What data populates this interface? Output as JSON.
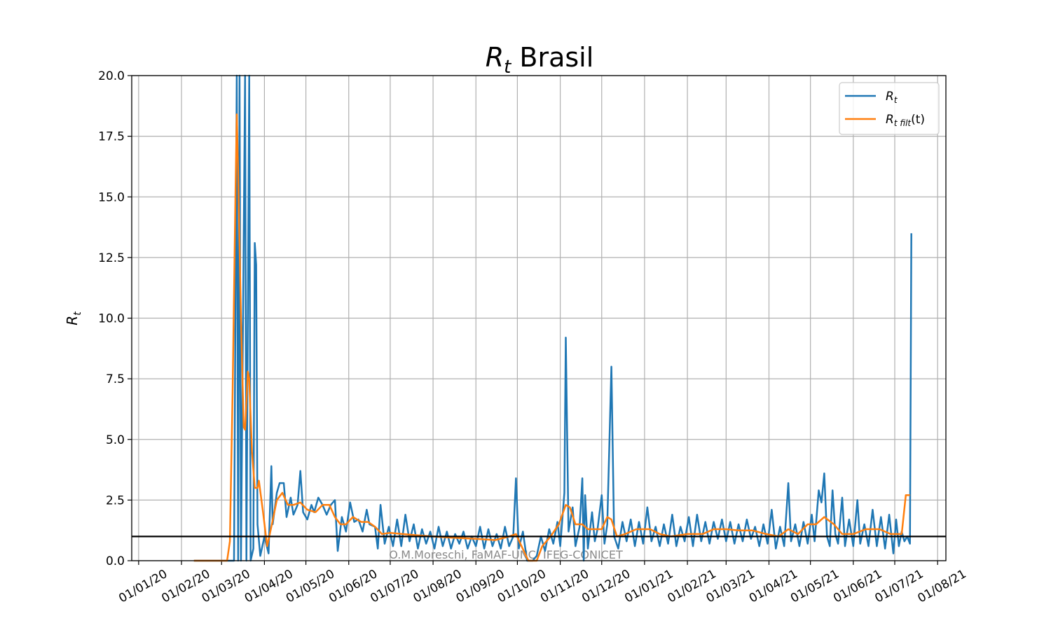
{
  "chart_data": {
    "type": "line",
    "title_main": "R",
    "title_sub": "t",
    "title_rest": " Brasil",
    "ylabel_main": "R",
    "ylabel_sub": "t",
    "ylim": [
      0,
      20
    ],
    "yticks": [
      "0.0",
      "2.5",
      "5.0",
      "7.5",
      "10.0",
      "12.5",
      "15.0",
      "17.5",
      "20.0"
    ],
    "xticks": [
      "01/01/20",
      "01/02/20",
      "01/03/20",
      "01/04/20",
      "01/05/20",
      "01/06/20",
      "01/07/20",
      "01/08/20",
      "01/09/20",
      "01/10/20",
      "01/11/20",
      "01/12/20",
      "01/01/21",
      "01/02/21",
      "01/03/21",
      "01/04/21",
      "01/05/21",
      "01/06/21",
      "01/07/21",
      "01/08/21"
    ],
    "grid": true,
    "legend_position": "top-right",
    "reference_line": 1.0,
    "watermark": "O.M.Moreschi, FaMAF-UNC, IFEG-CONICET",
    "colors": {
      "rt": "#1f77b4",
      "rt_filt": "#ff7f0e",
      "reference": "#000000"
    },
    "series": [
      {
        "name": "R_t",
        "legend_main": "R",
        "legend_sub": "t",
        "legend_rest": "",
        "points": [
          [
            "2020-02-10",
            0
          ],
          [
            "2020-03-01",
            0
          ],
          [
            "2020-03-05",
            0
          ],
          [
            "2020-03-10",
            0
          ],
          [
            "2020-03-12",
            20
          ],
          [
            "2020-03-13",
            0
          ],
          [
            "2020-03-14",
            20
          ],
          [
            "2020-03-15",
            0
          ],
          [
            "2020-03-18",
            20
          ],
          [
            "2020-03-19",
            0
          ],
          [
            "2020-03-21",
            20
          ],
          [
            "2020-03-22",
            0
          ],
          [
            "2020-03-24",
            0.5
          ],
          [
            "2020-03-25",
            13.1
          ],
          [
            "2020-03-26",
            12.2
          ],
          [
            "2020-03-27",
            1.5
          ],
          [
            "2020-03-29",
            0.2
          ],
          [
            "2020-04-01",
            1.0
          ],
          [
            "2020-04-04",
            0.3
          ],
          [
            "2020-04-06",
            3.9
          ],
          [
            "2020-04-07",
            1.5
          ],
          [
            "2020-04-10",
            2.8
          ],
          [
            "2020-04-12",
            3.2
          ],
          [
            "2020-04-15",
            3.2
          ],
          [
            "2020-04-17",
            1.8
          ],
          [
            "2020-04-20",
            2.6
          ],
          [
            "2020-04-22",
            1.9
          ],
          [
            "2020-04-25",
            2.3
          ],
          [
            "2020-04-27",
            3.7
          ],
          [
            "2020-04-29",
            2.0
          ],
          [
            "2020-05-02",
            1.7
          ],
          [
            "2020-05-05",
            2.3
          ],
          [
            "2020-05-07",
            2.0
          ],
          [
            "2020-05-10",
            2.6
          ],
          [
            "2020-05-13",
            2.3
          ],
          [
            "2020-05-16",
            1.9
          ],
          [
            "2020-05-19",
            2.3
          ],
          [
            "2020-05-22",
            2.5
          ],
          [
            "2020-05-24",
            0.4
          ],
          [
            "2020-05-27",
            1.8
          ],
          [
            "2020-05-30",
            1.2
          ],
          [
            "2020-06-02",
            2.4
          ],
          [
            "2020-06-05",
            1.6
          ],
          [
            "2020-06-08",
            1.7
          ],
          [
            "2020-06-11",
            1.2
          ],
          [
            "2020-06-14",
            2.1
          ],
          [
            "2020-06-16",
            1.5
          ],
          [
            "2020-06-20",
            1.4
          ],
          [
            "2020-06-22",
            0.5
          ],
          [
            "2020-06-24",
            2.3
          ],
          [
            "2020-06-27",
            0.7
          ],
          [
            "2020-06-30",
            1.4
          ],
          [
            "2020-07-03",
            0.6
          ],
          [
            "2020-07-06",
            1.7
          ],
          [
            "2020-07-09",
            0.6
          ],
          [
            "2020-07-12",
            1.9
          ],
          [
            "2020-07-15",
            0.8
          ],
          [
            "2020-07-18",
            1.5
          ],
          [
            "2020-07-21",
            0.5
          ],
          [
            "2020-07-24",
            1.3
          ],
          [
            "2020-07-27",
            0.7
          ],
          [
            "2020-07-30",
            1.2
          ],
          [
            "2020-08-02",
            0.5
          ],
          [
            "2020-08-05",
            1.4
          ],
          [
            "2020-08-08",
            0.6
          ],
          [
            "2020-08-11",
            1.2
          ],
          [
            "2020-08-14",
            0.5
          ],
          [
            "2020-08-17",
            1.1
          ],
          [
            "2020-08-20",
            0.7
          ],
          [
            "2020-08-23",
            1.2
          ],
          [
            "2020-08-26",
            0.5
          ],
          [
            "2020-08-29",
            1.0
          ],
          [
            "2020-09-01",
            0.6
          ],
          [
            "2020-09-04",
            1.4
          ],
          [
            "2020-09-07",
            0.5
          ],
          [
            "2020-09-10",
            1.3
          ],
          [
            "2020-09-13",
            0.6
          ],
          [
            "2020-09-16",
            1.1
          ],
          [
            "2020-09-19",
            0.5
          ],
          [
            "2020-09-22",
            1.4
          ],
          [
            "2020-09-25",
            0.6
          ],
          [
            "2020-09-28",
            1.0
          ],
          [
            "2020-09-30",
            3.4
          ],
          [
            "2020-10-02",
            0.5
          ],
          [
            "2020-10-05",
            1.2
          ],
          [
            "2020-10-08",
            0
          ],
          [
            "2020-10-12",
            0
          ],
          [
            "2020-10-15",
            0.2
          ],
          [
            "2020-10-18",
            1.0
          ],
          [
            "2020-10-21",
            0.4
          ],
          [
            "2020-10-24",
            1.3
          ],
          [
            "2020-10-27",
            0.7
          ],
          [
            "2020-10-30",
            1.6
          ],
          [
            "2020-11-01",
            0.6
          ],
          [
            "2020-11-04",
            2.8
          ],
          [
            "2020-11-05",
            9.2
          ],
          [
            "2020-11-07",
            1.2
          ],
          [
            "2020-11-10",
            2.2
          ],
          [
            "2020-11-12",
            0.6
          ],
          [
            "2020-11-15",
            1.4
          ],
          [
            "2020-11-17",
            3.4
          ],
          [
            "2020-11-18",
            0
          ],
          [
            "2020-11-19",
            2.7
          ],
          [
            "2020-11-21",
            0.5
          ],
          [
            "2020-11-24",
            2.0
          ],
          [
            "2020-11-26",
            0.8
          ],
          [
            "2020-11-28",
            1.3
          ],
          [
            "2020-12-01",
            2.7
          ],
          [
            "2020-12-03",
            0.7
          ],
          [
            "2020-12-05",
            1.5
          ],
          [
            "2020-12-08",
            8.0
          ],
          [
            "2020-12-10",
            1.0
          ],
          [
            "2020-12-13",
            0.5
          ],
          [
            "2020-12-16",
            1.6
          ],
          [
            "2020-12-19",
            0.8
          ],
          [
            "2020-12-22",
            1.7
          ],
          [
            "2020-12-25",
            0.6
          ],
          [
            "2020-12-28",
            1.6
          ],
          [
            "2020-12-31",
            0.7
          ],
          [
            "2021-01-03",
            2.2
          ],
          [
            "2021-01-06",
            0.8
          ],
          [
            "2021-01-09",
            1.4
          ],
          [
            "2021-01-12",
            0.6
          ],
          [
            "2021-01-15",
            1.5
          ],
          [
            "2021-01-18",
            0.7
          ],
          [
            "2021-01-21",
            1.9
          ],
          [
            "2021-01-24",
            0.6
          ],
          [
            "2021-01-27",
            1.4
          ],
          [
            "2021-01-30",
            0.8
          ],
          [
            "2021-02-02",
            1.8
          ],
          [
            "2021-02-05",
            0.6
          ],
          [
            "2021-02-08",
            1.9
          ],
          [
            "2021-02-11",
            0.8
          ],
          [
            "2021-02-14",
            1.6
          ],
          [
            "2021-02-17",
            0.7
          ],
          [
            "2021-02-20",
            1.6
          ],
          [
            "2021-02-23",
            0.9
          ],
          [
            "2021-02-26",
            1.7
          ],
          [
            "2021-03-01",
            0.8
          ],
          [
            "2021-03-04",
            1.6
          ],
          [
            "2021-03-07",
            0.7
          ],
          [
            "2021-03-10",
            1.5
          ],
          [
            "2021-03-13",
            0.8
          ],
          [
            "2021-03-16",
            1.7
          ],
          [
            "2021-03-19",
            0.9
          ],
          [
            "2021-03-22",
            1.4
          ],
          [
            "2021-03-25",
            0.6
          ],
          [
            "2021-03-28",
            1.5
          ],
          [
            "2021-03-31",
            0.7
          ],
          [
            "2021-04-03",
            2.1
          ],
          [
            "2021-04-06",
            0.5
          ],
          [
            "2021-04-09",
            1.4
          ],
          [
            "2021-04-12",
            0.6
          ],
          [
            "2021-04-15",
            3.2
          ],
          [
            "2021-04-17",
            0.8
          ],
          [
            "2021-04-20",
            1.5
          ],
          [
            "2021-04-23",
            0.6
          ],
          [
            "2021-04-26",
            1.6
          ],
          [
            "2021-04-29",
            0.7
          ],
          [
            "2021-05-02",
            1.9
          ],
          [
            "2021-05-04",
            0.8
          ],
          [
            "2021-05-07",
            2.9
          ],
          [
            "2021-05-09",
            2.4
          ],
          [
            "2021-05-11",
            3.6
          ],
          [
            "2021-05-13",
            1.0
          ],
          [
            "2021-05-15",
            0.6
          ],
          [
            "2021-05-17",
            2.9
          ],
          [
            "2021-05-19",
            1.1
          ],
          [
            "2021-05-21",
            0.7
          ],
          [
            "2021-05-24",
            2.6
          ],
          [
            "2021-05-26",
            0.6
          ],
          [
            "2021-05-29",
            1.7
          ],
          [
            "2021-06-01",
            0.6
          ],
          [
            "2021-06-04",
            2.5
          ],
          [
            "2021-06-06",
            0.7
          ],
          [
            "2021-06-09",
            1.5
          ],
          [
            "2021-06-12",
            0.6
          ],
          [
            "2021-06-15",
            2.1
          ],
          [
            "2021-06-18",
            0.6
          ],
          [
            "2021-06-21",
            1.8
          ],
          [
            "2021-06-24",
            0.5
          ],
          [
            "2021-06-27",
            1.9
          ],
          [
            "2021-06-30",
            0.3
          ],
          [
            "2021-07-02",
            1.7
          ],
          [
            "2021-07-04",
            0.6
          ],
          [
            "2021-07-06",
            1.2
          ],
          [
            "2021-07-08",
            0.8
          ],
          [
            "2021-07-10",
            1.0
          ],
          [
            "2021-07-12",
            0.7
          ],
          [
            "2021-07-13",
            13.5
          ]
        ]
      },
      {
        "name": "R_t filt(t)",
        "legend_main": "R",
        "legend_sub": "t filt",
        "legend_rest": "(t)",
        "points": [
          [
            "2020-02-10",
            0
          ],
          [
            "2020-03-01",
            0
          ],
          [
            "2020-03-05",
            0
          ],
          [
            "2020-03-07",
            0.8
          ],
          [
            "2020-03-09",
            7
          ],
          [
            "2020-03-11",
            15
          ],
          [
            "2020-03-12",
            18.4
          ],
          [
            "2020-03-13",
            16
          ],
          [
            "2020-03-15",
            10
          ],
          [
            "2020-03-17",
            5.5
          ],
          [
            "2020-03-18",
            5.4
          ],
          [
            "2020-03-20",
            7.8
          ],
          [
            "2020-03-21",
            7.5
          ],
          [
            "2020-03-23",
            4.5
          ],
          [
            "2020-03-25",
            3.0
          ],
          [
            "2020-03-27",
            3.0
          ],
          [
            "2020-03-28",
            3.3
          ],
          [
            "2020-03-31",
            2.0
          ],
          [
            "2020-04-03",
            0.6
          ],
          [
            "2020-04-06",
            1.4
          ],
          [
            "2020-04-10",
            2.5
          ],
          [
            "2020-04-14",
            2.8
          ],
          [
            "2020-04-18",
            2.3
          ],
          [
            "2020-04-22",
            2.3
          ],
          [
            "2020-04-27",
            2.4
          ],
          [
            "2020-05-02",
            2.1
          ],
          [
            "2020-05-08",
            2.0
          ],
          [
            "2020-05-13",
            2.3
          ],
          [
            "2020-05-18",
            2.3
          ],
          [
            "2020-05-22",
            1.8
          ],
          [
            "2020-05-26",
            1.5
          ],
          [
            "2020-05-30",
            1.5
          ],
          [
            "2020-06-04",
            1.8
          ],
          [
            "2020-06-10",
            1.6
          ],
          [
            "2020-06-15",
            1.6
          ],
          [
            "2020-06-20",
            1.4
          ],
          [
            "2020-06-25",
            1.1
          ],
          [
            "2020-07-01",
            1.15
          ],
          [
            "2020-07-10",
            1.1
          ],
          [
            "2020-07-20",
            1.05
          ],
          [
            "2020-08-01",
            1.0
          ],
          [
            "2020-08-15",
            0.95
          ],
          [
            "2020-09-01",
            0.9
          ],
          [
            "2020-09-15",
            0.85
          ],
          [
            "2020-09-25",
            1.0
          ],
          [
            "2020-09-30",
            1.1
          ],
          [
            "2020-10-04",
            0.6
          ],
          [
            "2020-10-09",
            0
          ],
          [
            "2020-10-15",
            0
          ],
          [
            "2020-10-19",
            0.6
          ],
          [
            "2020-10-25",
            1.0
          ],
          [
            "2020-10-31",
            1.5
          ],
          [
            "2020-11-05",
            2.3
          ],
          [
            "2020-11-08",
            2.2
          ],
          [
            "2020-11-12",
            1.5
          ],
          [
            "2020-11-17",
            1.5
          ],
          [
            "2020-11-21",
            1.3
          ],
          [
            "2020-11-25",
            1.3
          ],
          [
            "2020-12-01",
            1.3
          ],
          [
            "2020-12-05",
            1.8
          ],
          [
            "2020-12-08",
            1.7
          ],
          [
            "2020-12-12",
            1.0
          ],
          [
            "2020-12-18",
            1.1
          ],
          [
            "2020-12-26",
            1.3
          ],
          [
            "2021-01-05",
            1.3
          ],
          [
            "2021-01-12",
            1.1
          ],
          [
            "2021-01-20",
            1.0
          ],
          [
            "2021-02-01",
            1.1
          ],
          [
            "2021-02-12",
            1.1
          ],
          [
            "2021-02-20",
            1.3
          ],
          [
            "2021-03-01",
            1.3
          ],
          [
            "2021-03-10",
            1.25
          ],
          [
            "2021-03-20",
            1.25
          ],
          [
            "2021-03-30",
            1.1
          ],
          [
            "2021-04-08",
            1.0
          ],
          [
            "2021-04-15",
            1.3
          ],
          [
            "2021-04-22",
            1.1
          ],
          [
            "2021-04-29",
            1.5
          ],
          [
            "2021-05-05",
            1.5
          ],
          [
            "2021-05-11",
            1.8
          ],
          [
            "2021-05-18",
            1.5
          ],
          [
            "2021-05-24",
            1.1
          ],
          [
            "2021-06-01",
            1.1
          ],
          [
            "2021-06-10",
            1.3
          ],
          [
            "2021-06-20",
            1.3
          ],
          [
            "2021-06-28",
            1.1
          ],
          [
            "2021-07-06",
            1.1
          ],
          [
            "2021-07-09",
            2.7
          ],
          [
            "2021-07-12",
            2.7
          ]
        ]
      }
    ]
  }
}
